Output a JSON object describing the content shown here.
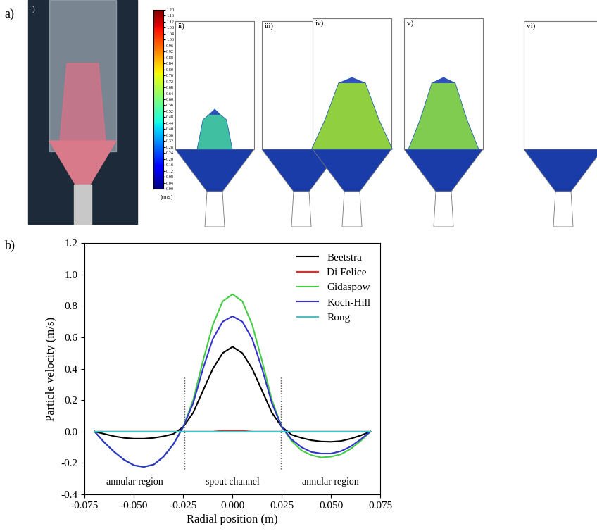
{
  "panel_labels": [
    "a)",
    "b)"
  ],
  "panel_a": {
    "subpanels": [
      "i)",
      "ii)",
      "iii)",
      "iv)",
      "v)",
      "vi)"
    ],
    "colorbar": {
      "range": [
        0,
        1.2
      ],
      "ticks": [
        {
          "value": 0,
          "label": "0.00"
        },
        {
          "value": 0.04,
          "label": "0.04"
        },
        {
          "value": 0.08,
          "label": "0.08"
        },
        {
          "value": 0.12,
          "label": "0.12"
        },
        {
          "value": 0.16,
          "label": "0.16"
        },
        {
          "value": 0.2,
          "label": "0.20"
        },
        {
          "value": 0.24,
          "label": "0.24"
        },
        {
          "value": 0.28,
          "label": "0.28"
        },
        {
          "value": 0.32,
          "label": "0.32"
        },
        {
          "value": 0.36,
          "label": "0.36"
        },
        {
          "value": 0.4,
          "label": "0.40"
        },
        {
          "value": 0.44,
          "label": "0.44"
        },
        {
          "value": 0.48,
          "label": "0.48"
        },
        {
          "value": 0.52,
          "label": "0.52"
        },
        {
          "value": 0.56,
          "label": "0.56"
        },
        {
          "value": 0.6,
          "label": "0.60"
        },
        {
          "value": 0.64,
          "label": "0.64"
        },
        {
          "value": 0.68,
          "label": "0.68"
        },
        {
          "value": 0.72,
          "label": "0.72"
        },
        {
          "value": 0.76,
          "label": "0.76"
        },
        {
          "value": 0.8,
          "label": "0.80"
        },
        {
          "value": 0.84,
          "label": "0.84"
        },
        {
          "value": 0.88,
          "label": "0.88"
        },
        {
          "value": 0.92,
          "label": "0.92"
        },
        {
          "value": 0.96,
          "label": "0.96"
        },
        {
          "value": 1.0,
          "label": "1.00"
        },
        {
          "value": 1.04,
          "label": "1.04"
        },
        {
          "value": 1.08,
          "label": "1.08"
        },
        {
          "value": 1.12,
          "label": "1.12"
        },
        {
          "value": 1.16,
          "label": "1.16"
        },
        {
          "value": 1.2,
          "label": "1.20"
        }
      ],
      "label": "[m/s]"
    }
  },
  "chart_data": {
    "type": "line",
    "x_label": "Radial position (m)",
    "y_label": "Particle velocity (m/s)",
    "x": [
      -0.07,
      -0.065,
      -0.06,
      -0.055,
      -0.05,
      -0.045,
      -0.04,
      -0.035,
      -0.03,
      -0.025,
      -0.02,
      -0.015,
      -0.01,
      -0.005,
      0,
      0.005,
      0.01,
      0.015,
      0.02,
      0.025,
      0.03,
      0.035,
      0.04,
      0.045,
      0.05,
      0.055,
      0.06,
      0.065,
      0.07
    ],
    "series": [
      {
        "name": "Beetstra",
        "color": "#000000",
        "values": [
          0,
          -0.015,
          -0.03,
          -0.04,
          -0.045,
          -0.045,
          -0.04,
          -0.03,
          -0.015,
          0.03,
          0.12,
          0.26,
          0.4,
          0.5,
          0.54,
          0.5,
          0.4,
          0.26,
          0.12,
          0.03,
          -0.02,
          -0.04,
          -0.055,
          -0.063,
          -0.065,
          -0.06,
          -0.045,
          -0.025,
          0
        ]
      },
      {
        "name": "Di Felice",
        "color": "#ff2020",
        "values": [
          0,
          0,
          0,
          0,
          0,
          0,
          0,
          0,
          0,
          0,
          0,
          0,
          0,
          0.005,
          0.005,
          0.005,
          0,
          0,
          0,
          0,
          0,
          0,
          0,
          0,
          0,
          0,
          0,
          0,
          0
        ]
      },
      {
        "name": "Gidaspow",
        "color": "#44cc44",
        "values": [
          0,
          -0.07,
          -0.13,
          -0.18,
          -0.215,
          -0.225,
          -0.21,
          -0.16,
          -0.08,
          0.03,
          0.2,
          0.45,
          0.68,
          0.83,
          0.875,
          0.83,
          0.68,
          0.45,
          0.2,
          0.03,
          -0.06,
          -0.12,
          -0.15,
          -0.165,
          -0.16,
          -0.145,
          -0.11,
          -0.06,
          0
        ]
      },
      {
        "name": "Koch-Hill",
        "color": "#3333cc",
        "values": [
          0,
          -0.07,
          -0.13,
          -0.18,
          -0.215,
          -0.225,
          -0.21,
          -0.16,
          -0.08,
          0.03,
          0.18,
          0.4,
          0.59,
          0.7,
          0.735,
          0.7,
          0.59,
          0.4,
          0.18,
          0.03,
          -0.05,
          -0.1,
          -0.13,
          -0.14,
          -0.14,
          -0.125,
          -0.095,
          -0.05,
          0
        ]
      },
      {
        "name": "Rong",
        "color": "#33cccc",
        "values": [
          0,
          0,
          0,
          0,
          0,
          0,
          0,
          0,
          0,
          0,
          0,
          0,
          0,
          0,
          0,
          0,
          0,
          0,
          0,
          0,
          0,
          0,
          0,
          0,
          0,
          0,
          0,
          0,
          0
        ]
      }
    ],
    "xlim": [
      -0.075,
      0.075
    ],
    "xticks": [
      {
        "value": -0.075,
        "label": "-0.075"
      },
      {
        "value": -0.05,
        "label": "-0.050"
      },
      {
        "value": -0.025,
        "label": "-0.025"
      },
      {
        "value": 0,
        "label": "0.000"
      },
      {
        "value": 0.025,
        "label": "0.025"
      },
      {
        "value": 0.05,
        "label": "0.050"
      },
      {
        "value": 0.075,
        "label": "0.075"
      }
    ],
    "ylim": [
      -0.4,
      1.2
    ],
    "yticks": [
      {
        "value": -0.4,
        "label": "-0.4"
      },
      {
        "value": -0.2,
        "label": "-0.2"
      },
      {
        "value": 0,
        "label": "0.0"
      },
      {
        "value": 0.2,
        "label": "0.2"
      },
      {
        "value": 0.4,
        "label": "0.4"
      },
      {
        "value": 0.6,
        "label": "0.6"
      },
      {
        "value": 0.8,
        "label": "0.8"
      },
      {
        "value": 1.0,
        "label": "1.0"
      },
      {
        "value": 1.2,
        "label": "1.2"
      }
    ],
    "boundaries": [
      -0.0245,
      0.0245
    ],
    "annotations": [
      "annular region",
      "spout channel",
      "annular region"
    ],
    "legend": "upper right"
  }
}
